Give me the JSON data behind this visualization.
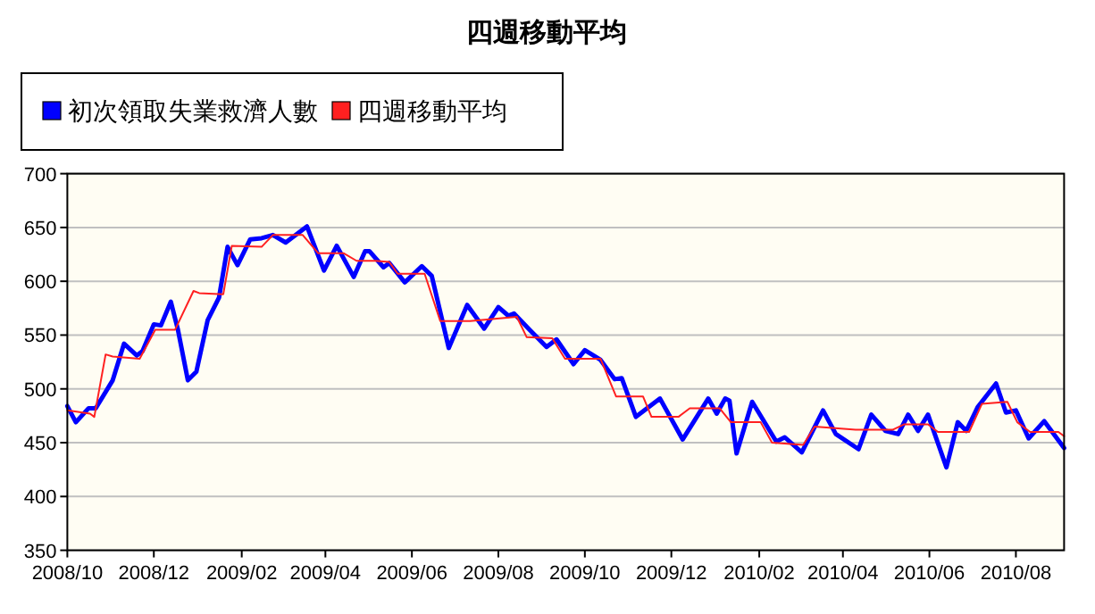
{
  "chart_data": {
    "type": "line",
    "title": "四週移動平均",
    "legend": "top left",
    "grid": "y",
    "marker": "none",
    "line_style": "solid",
    "xlim": [
      "2008-10-01",
      "2010-09-04"
    ],
    "xticks": [
      {
        "value": "2008-10",
        "label": "2008/10"
      },
      {
        "value": "2008-12",
        "label": "2008/12"
      },
      {
        "value": "2009-02",
        "label": "2009/02"
      },
      {
        "value": "2009-04",
        "label": "2009/04"
      },
      {
        "value": "2009-06",
        "label": "2009/06"
      },
      {
        "value": "2009-08",
        "label": "2009/08"
      },
      {
        "value": "2009-10",
        "label": "2009/10"
      },
      {
        "value": "2009-12",
        "label": "2009/12"
      },
      {
        "value": "2010-02",
        "label": "2010/02"
      },
      {
        "value": "2010-04",
        "label": "2010/04"
      },
      {
        "value": "2010-06",
        "label": "2010/06"
      },
      {
        "value": "2010-08",
        "label": "2010/08"
      }
    ],
    "ylim": [
      350,
      700
    ],
    "yticks": [
      350,
      400,
      450,
      500,
      550,
      600,
      650,
      700
    ],
    "series": [
      {
        "name": "初次領取失業救濟人數",
        "color": "#0000ff",
        "x": [
          "2008-10-01",
          "2008-10-07",
          "2008-10-16",
          "2008-10-21",
          "2008-11-02",
          "2008-11-10",
          "2008-11-19",
          "2008-11-23",
          "2008-12-01",
          "2008-12-06",
          "2008-12-13",
          "2008-12-18",
          "2008-12-25",
          "2008-12-31",
          "2009-01-08",
          "2009-01-16",
          "2009-01-22",
          "2009-01-29",
          "2009-02-07",
          "2009-02-15",
          "2009-02-23",
          "2009-03-04",
          "2009-03-19",
          "2009-03-31",
          "2009-04-09",
          "2009-04-21",
          "2009-04-29",
          "2009-05-02",
          "2009-05-12",
          "2009-05-16",
          "2009-05-27",
          "2009-06-08",
          "2009-06-15",
          "2009-06-27",
          "2009-07-10",
          "2009-07-22",
          "2009-08-01",
          "2009-08-08",
          "2009-08-12",
          "2009-08-23",
          "2009-09-04",
          "2009-09-11",
          "2009-09-23",
          "2009-10-01",
          "2009-10-12",
          "2009-10-22",
          "2009-10-27",
          "2009-11-06",
          "2009-11-23",
          "2009-12-09",
          "2009-12-27",
          "2010-01-02",
          "2010-01-08",
          "2010-01-11",
          "2010-01-16",
          "2010-01-27",
          "2010-02-13",
          "2010-02-19",
          "2010-03-03",
          "2010-03-18",
          "2010-03-27",
          "2010-04-12",
          "2010-04-21",
          "2010-05-01",
          "2010-05-10",
          "2010-05-17",
          "2010-05-24",
          "2010-05-31",
          "2010-06-13",
          "2010-06-21",
          "2010-06-27",
          "2010-07-05",
          "2010-07-18",
          "2010-07-25",
          "2010-08-01",
          "2010-08-10",
          "2010-08-21",
          "2010-09-04"
        ],
        "values": [
          484,
          469,
          482,
          482,
          508,
          542,
          531,
          535,
          560,
          559,
          581,
          555,
          508,
          516,
          564,
          585,
          632,
          615,
          639,
          640,
          643,
          636,
          651,
          610,
          633,
          604,
          628,
          628,
          613,
          617,
          599,
          614,
          605,
          538,
          578,
          556,
          576,
          568,
          570,
          555,
          539,
          546,
          523,
          536,
          527,
          509,
          510,
          474,
          491,
          453,
          491,
          477,
          491,
          489,
          440,
          488,
          451,
          455,
          441,
          480,
          458,
          444,
          476,
          461,
          458,
          476,
          461,
          476,
          427,
          469,
          461,
          483,
          505,
          478,
          480,
          454,
          470,
          445
        ]
      },
      {
        "name": "四週移動平均",
        "color": "#ff2020",
        "x": [
          "2008-10-01",
          "2008-10-17",
          "2008-10-20",
          "2008-10-28",
          "2008-11-02",
          "2008-11-21",
          "2008-12-02",
          "2008-12-16",
          "2008-12-29",
          "2009-01-02",
          "2009-01-19",
          "2009-01-25",
          "2009-02-15",
          "2009-02-23",
          "2009-03-16",
          "2009-03-27",
          "2009-04-14",
          "2009-04-23",
          "2009-05-06",
          "2009-05-16",
          "2009-05-22",
          "2009-06-10",
          "2009-06-21",
          "2009-07-12",
          "2009-08-14",
          "2009-08-21",
          "2009-09-08",
          "2009-09-17",
          "2009-10-12",
          "2009-10-23",
          "2009-11-11",
          "2009-11-17",
          "2009-12-06",
          "2009-12-14",
          "2010-01-04",
          "2010-01-12",
          "2010-02-02",
          "2010-02-10",
          "2010-03-04",
          "2010-03-12",
          "2010-04-10",
          "2010-05-06",
          "2010-05-14",
          "2010-05-31",
          "2010-06-07",
          "2010-06-29",
          "2010-07-08",
          "2010-07-26",
          "2010-08-02",
          "2010-08-11",
          "2010-08-31",
          "2010-09-04"
        ],
        "values": [
          480,
          477,
          474,
          532,
          530,
          528,
          555,
          555,
          591,
          589,
          588,
          633,
          632,
          643,
          643,
          626,
          626,
          619,
          619,
          618,
          607,
          607,
          563,
          563,
          567,
          548,
          547,
          528,
          528,
          493,
          493,
          474,
          474,
          482,
          482,
          469,
          469,
          450,
          448,
          465,
          462,
          462,
          467,
          467,
          460,
          460,
          486,
          488,
          469,
          460,
          460,
          456
        ]
      }
    ]
  }
}
